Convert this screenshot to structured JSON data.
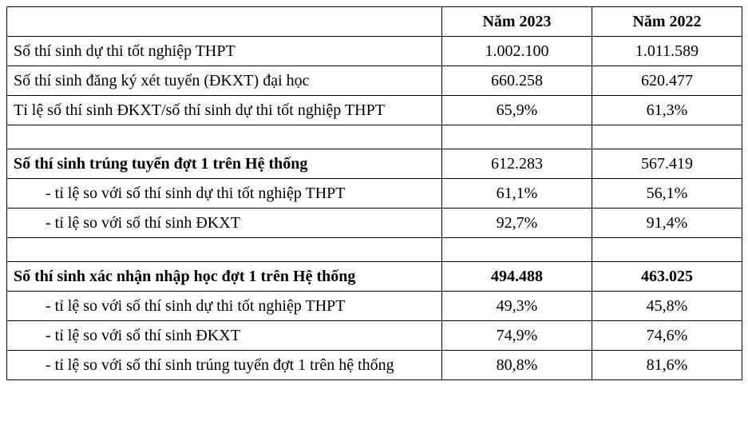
{
  "table": {
    "header": {
      "col0": "",
      "col1": "Năm 2023",
      "col2": "Năm 2022"
    },
    "rows": [
      {
        "type": "data",
        "bold": false,
        "indent": false,
        "label": "Số thí sinh dự thi tốt nghiệp THPT",
        "v2023": "1.002.100",
        "v2022": "1.011.589"
      },
      {
        "type": "data",
        "bold": false,
        "indent": false,
        "label": "Số thí sinh đăng ký xét tuyển (ĐKXT) đại học",
        "v2023": "660.258",
        "v2022": "620.477"
      },
      {
        "type": "data",
        "bold": false,
        "indent": false,
        "label": "Tỉ lệ số thí sinh ĐKXT/số thí sinh dự thi tốt nghiệp THPT",
        "v2023": "65,9%",
        "v2022": "61,3%"
      },
      {
        "type": "spacer"
      },
      {
        "type": "data",
        "bold": true,
        "indent": false,
        "label": "Số thí sinh trúng tuyển đợt 1 trên Hệ thống",
        "v2023": "612.283",
        "v2022": "567.419",
        "value_bold": false
      },
      {
        "type": "data",
        "bold": false,
        "indent": true,
        "label": "- tỉ lệ so với số thí sinh dự thi tốt nghiệp THPT",
        "v2023": "61,1%",
        "v2022": "56,1%"
      },
      {
        "type": "data",
        "bold": false,
        "indent": true,
        "label": "- tỉ lệ so với số thí sinh ĐKXT",
        "v2023": "92,7%",
        "v2022": "91,4%"
      },
      {
        "type": "spacer"
      },
      {
        "type": "data",
        "bold": true,
        "indent": false,
        "label": "Số thí sinh xác nhận nhập học đợt 1 trên Hệ thống",
        "v2023": "494.488",
        "v2022": "463.025",
        "value_bold": true
      },
      {
        "type": "data",
        "bold": false,
        "indent": true,
        "label": "- tỉ lệ so với số thí sinh dự thi tốt nghiệp THPT",
        "v2023": "49,3%",
        "v2022": "45,8%"
      },
      {
        "type": "data",
        "bold": false,
        "indent": true,
        "label": "- tỉ lệ so với số thí sinh ĐKXT",
        "v2023": "74,9%",
        "v2022": "74,6%"
      },
      {
        "type": "data",
        "bold": false,
        "indent": true,
        "label": "- tỉ lệ so với số thí sinh trúng tuyển đợt 1 trên hệ thống",
        "v2023": "80,8%",
        "v2022": "81,6%"
      }
    ]
  }
}
